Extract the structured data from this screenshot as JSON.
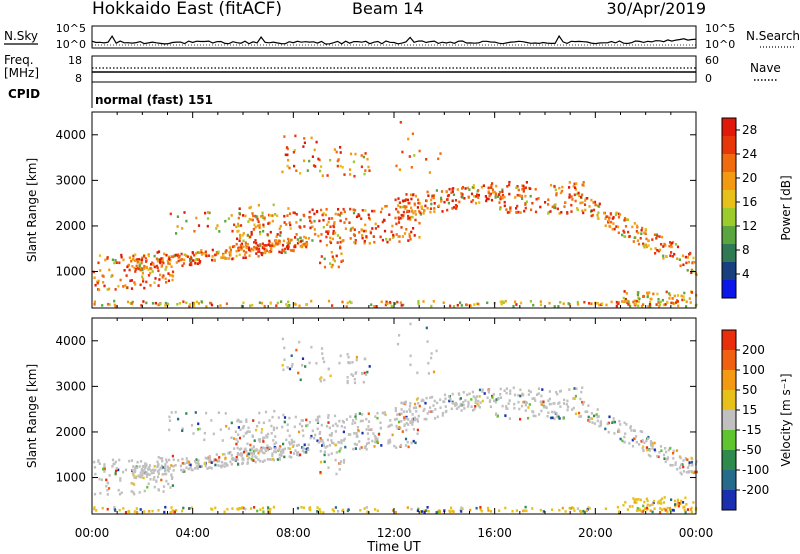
{
  "header": {
    "station": "Hokkaido East (fitACF)",
    "beam": "Beam 14",
    "date": "30/Apr/2019"
  },
  "status_panel": {
    "nsky_label": "N.Sky",
    "nsearch_label": "N.Search",
    "freq_label": "Freq.",
    "freq_unit": "[MHz]",
    "nave_label": "Nave",
    "cpid_label": "CPID",
    "cpid_value": "normal (fast) 151",
    "noise_ticks": [
      "10^5",
      "10^0"
    ],
    "freq_ticks": [
      "18",
      "8"
    ],
    "nave_ticks": [
      "60",
      "0"
    ]
  },
  "chart_data": [
    {
      "type": "heatmap",
      "name": "power",
      "xlabel": "Time UT",
      "ylabel": "Slant Range [km]",
      "x_ticks": [
        "00:00",
        "04:00",
        "08:00",
        "12:00",
        "16:00",
        "20:00",
        "00:00"
      ],
      "xlim_hours": [
        0,
        24
      ],
      "ylim_km": [
        200,
        4500
      ],
      "y_ticks": [
        1000,
        2000,
        3000,
        4000
      ],
      "colorbar": {
        "label": "Power [dB]",
        "ticks": [
          4,
          8,
          12,
          16,
          20,
          24,
          28
        ],
        "range": [
          0,
          30
        ],
        "colors": [
          "#0b16e8",
          "#18407e",
          "#2f7a55",
          "#5aa53f",
          "#9ccc2c",
          "#e8c01a",
          "#f39a12",
          "#f06a0e",
          "#e8360b",
          "#e01a0a"
        ]
      }
    },
    {
      "type": "heatmap",
      "name": "velocity",
      "xlabel": "Time UT",
      "ylabel": "Slant Range [km]",
      "x_ticks": [
        "00:00",
        "04:00",
        "08:00",
        "12:00",
        "16:00",
        "20:00",
        "00:00"
      ],
      "xlim_hours": [
        0,
        24
      ],
      "ylim_km": [
        200,
        4500
      ],
      "y_ticks": [
        1000,
        2000,
        3000,
        4000
      ],
      "colorbar": {
        "label": "Velocity [m s⁻¹]",
        "ticks": [
          "200",
          "100",
          "50",
          "15",
          "-15",
          "-50",
          "-100",
          "-200"
        ],
        "colors": [
          "#1a2fb0",
          "#276b8a",
          "#2f8a4d",
          "#5fc42e",
          "#c0c0c0",
          "#e8c01a",
          "#f39a12",
          "#f06010",
          "#e82e0b"
        ]
      }
    }
  ]
}
